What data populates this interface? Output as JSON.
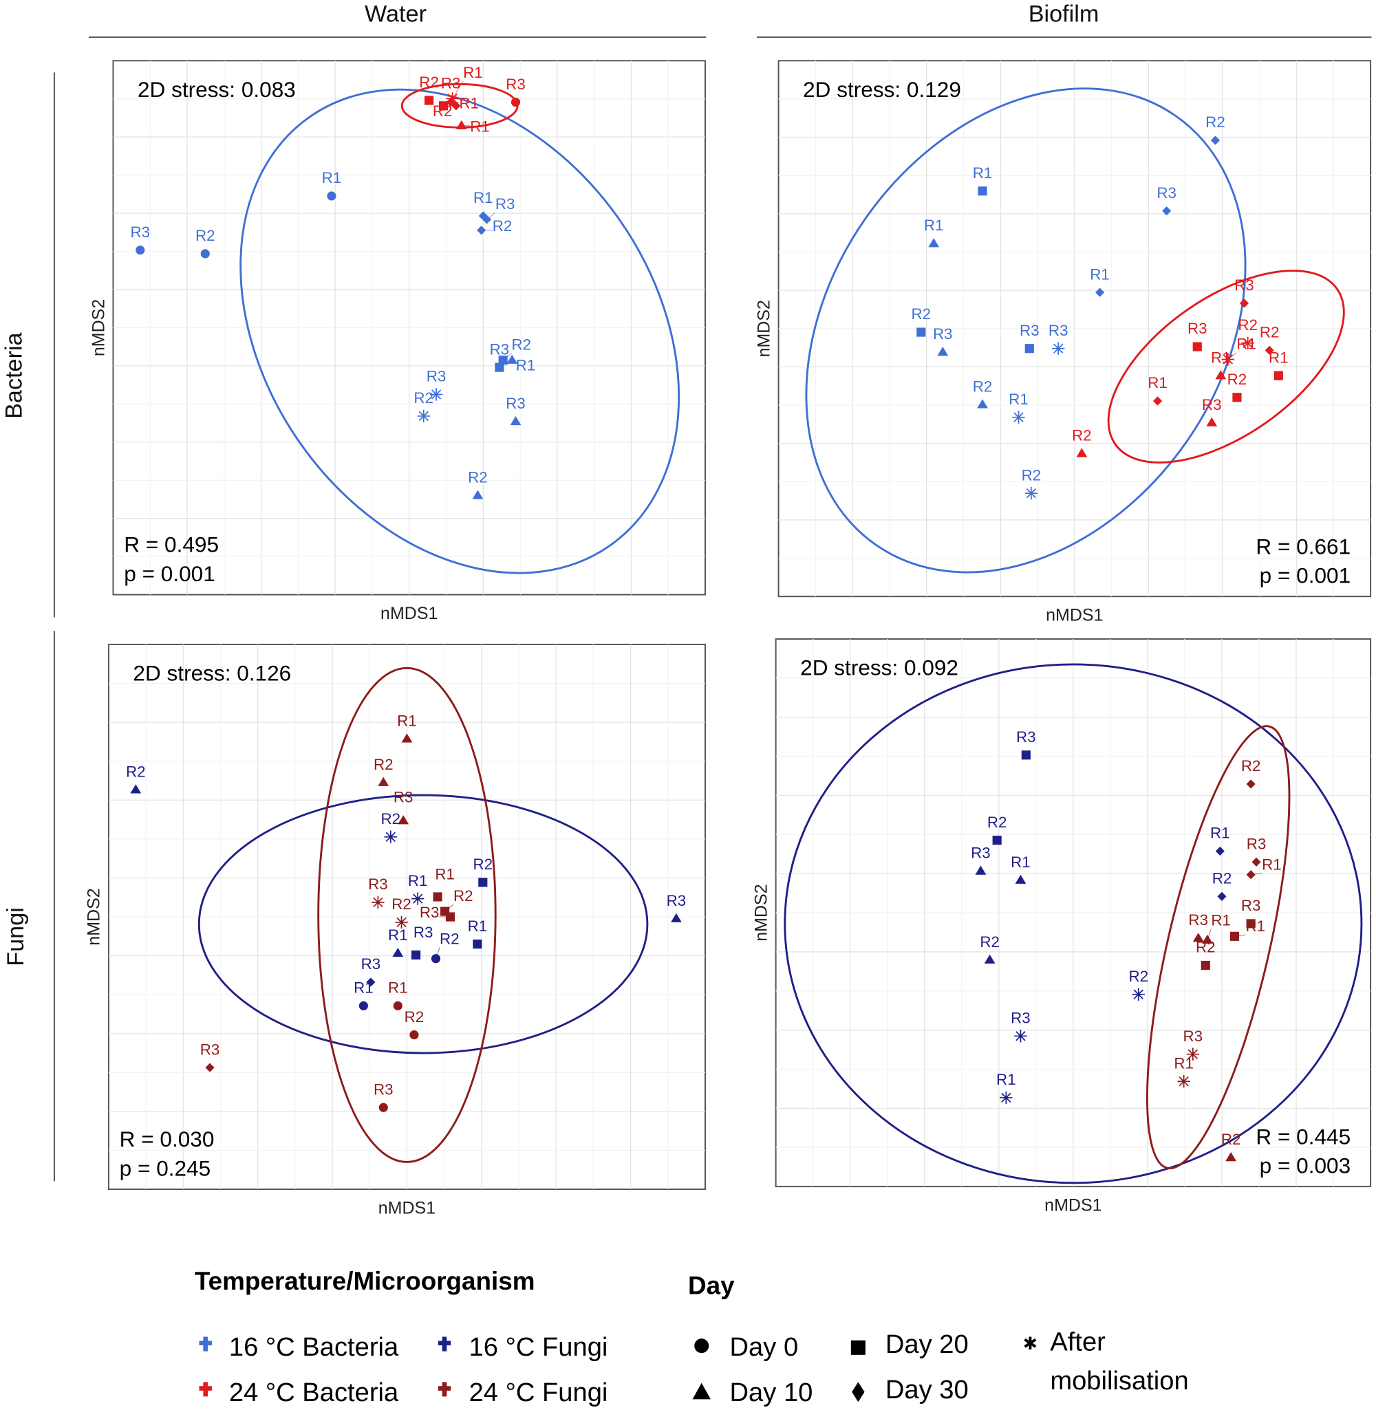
{
  "headers": {
    "columns": [
      "Water",
      "Biofilm"
    ],
    "rows": [
      "Bacteria",
      "Fungi"
    ]
  },
  "legend": {
    "group_title": "Temperature/Microorganism",
    "groups": [
      {
        "label": "16 °C Bacteria",
        "color": "#3f6fd6"
      },
      {
        "label": "16 °C Fungi",
        "color": "#1f1f8a"
      },
      {
        "label": "24 °C Bacteria",
        "color": "#e31a1c"
      },
      {
        "label": "24 °C Fungi",
        "color": "#8e1b1b"
      }
    ],
    "day_title": "Day",
    "days": [
      {
        "label": "Day 0",
        "shape": "circle"
      },
      {
        "label": "Day 10",
        "shape": "triangle"
      },
      {
        "label": "Day 20",
        "shape": "square"
      },
      {
        "label": "Day 30",
        "shape": "diamond"
      }
    ],
    "after": {
      "label_line1": "After",
      "label_line2": "mobilisation",
      "shape": "asterisk"
    }
  },
  "chart_data": [
    {
      "type": "scatter",
      "column": "Water",
      "row": "Bacteria",
      "xlabel": "nMDS1",
      "ylabel": "nMDS2",
      "stress": "2D stress: 0.083",
      "R": "R = 0.495",
      "p": "p = 0.001",
      "stats_placement": "bottom-left",
      "xlim": [
        -1.64,
        1.64
      ],
      "ylim": [
        -1.48,
        1.48
      ],
      "grid": true,
      "series": [
        {
          "name": "16 °C Bacteria",
          "color": "#3f6fd6",
          "points": [
            {
              "label": "R3",
              "shape": "circle",
              "x": -1.49,
              "y": 0.43
            },
            {
              "label": "R2",
              "shape": "circle",
              "x": -1.13,
              "y": 0.41
            },
            {
              "label": "R1",
              "shape": "circle",
              "x": -0.43,
              "y": 0.73
            },
            {
              "label": "R1",
              "shape": "diamond",
              "x": 0.41,
              "y": 0.62
            },
            {
              "label": "R3",
              "shape": "diamond",
              "x": 0.43,
              "y": 0.6
            },
            {
              "label": "R2",
              "shape": "diamond",
              "x": 0.4,
              "y": 0.54
            },
            {
              "label": "R3",
              "shape": "square",
              "x": 0.5,
              "y": -0.22
            },
            {
              "label": "R2",
              "shape": "square",
              "x": 0.52,
              "y": -0.18
            },
            {
              "label": "R1",
              "shape": "triangle",
              "x": 0.57,
              "y": -0.18
            },
            {
              "label": "R3",
              "shape": "triangle",
              "x": 0.59,
              "y": -0.52
            },
            {
              "label": "R2",
              "shape": "triangle",
              "x": 0.38,
              "y": -0.93
            },
            {
              "label": "R2",
              "shape": "asterisk",
              "x": 0.08,
              "y": -0.49
            },
            {
              "label": "R3",
              "shape": "asterisk",
              "x": 0.15,
              "y": -0.37
            }
          ]
        },
        {
          "name": "24 °C Bacteria",
          "color": "#e31a1c",
          "points": [
            {
              "label": "R2",
              "shape": "square",
              "x": 0.11,
              "y": 1.26
            },
            {
              "label": "R3",
              "shape": "square",
              "x": 0.19,
              "y": 1.23
            },
            {
              "label": "R1",
              "shape": "diamond",
              "x": 0.23,
              "y": 1.25
            },
            {
              "label": "R2",
              "shape": "diamond",
              "x": 0.26,
              "y": 1.23
            },
            {
              "label": "R1",
              "shape": "asterisk",
              "x": 0.24,
              "y": 1.27
            },
            {
              "label": "R3",
              "shape": "circle",
              "x": 0.59,
              "y": 1.25
            },
            {
              "label": "R1",
              "shape": "triangle",
              "x": 0.29,
              "y": 1.12
            }
          ]
        }
      ],
      "ellipses": [
        {
          "series": "16 °C Bacteria",
          "color": "#3f6fd6",
          "cx": 0.28,
          "cy": -0.02,
          "rx": 1.45,
          "ry": 1.08,
          "angle_deg": -55
        },
        {
          "series": "24 °C Bacteria",
          "color": "#e31a1c",
          "cx": 0.28,
          "cy": 1.23,
          "rx": 0.32,
          "ry": 0.12,
          "angle_deg": 0
        }
      ]
    },
    {
      "type": "scatter",
      "column": "Biofilm",
      "row": "Bacteria",
      "xlabel": "nMDS1",
      "ylabel": "nMDS2",
      "stress": "2D stress: 0.129",
      "R": "R = 0.661",
      "p": "p = 0.001",
      "stats_placement": "bottom-right",
      "xlim": [
        -1.64,
        1.64
      ],
      "ylim": [
        -1.48,
        1.48
      ],
      "grid": true,
      "series": [
        {
          "name": "16 °C Bacteria",
          "color": "#3f6fd6",
          "points": [
            {
              "label": "R2",
              "shape": "diamond",
              "x": 0.78,
              "y": 1.04
            },
            {
              "label": "R3",
              "shape": "diamond",
              "x": 0.51,
              "y": 0.65
            },
            {
              "label": "R1",
              "shape": "diamond",
              "x": 0.14,
              "y": 0.2
            },
            {
              "label": "R1",
              "shape": "square",
              "x": -0.51,
              "y": 0.76
            },
            {
              "label": "R1",
              "shape": "triangle",
              "x": -0.78,
              "y": 0.47
            },
            {
              "label": "R2",
              "shape": "square",
              "x": -0.85,
              "y": -0.02
            },
            {
              "label": "R3",
              "shape": "triangle",
              "x": -0.73,
              "y": -0.13
            },
            {
              "label": "R3",
              "shape": "square",
              "x": -0.25,
              "y": -0.11
            },
            {
              "label": "R3",
              "shape": "asterisk",
              "x": -0.09,
              "y": -0.11
            },
            {
              "label": "R2",
              "shape": "triangle",
              "x": -0.51,
              "y": -0.42
            },
            {
              "label": "R1",
              "shape": "asterisk",
              "x": -0.31,
              "y": -0.49
            },
            {
              "label": "R2",
              "shape": "asterisk",
              "x": -0.24,
              "y": -0.91
            }
          ]
        },
        {
          "name": "24 °C Bacteria",
          "color": "#e31a1c",
          "points": [
            {
              "label": "R2",
              "shape": "triangle",
              "x": 0.04,
              "y": -0.69
            },
            {
              "label": "R1",
              "shape": "diamond",
              "x": 0.46,
              "y": -0.4
            },
            {
              "label": "R3",
              "shape": "square",
              "x": 0.68,
              "y": -0.1
            },
            {
              "label": "R3",
              "shape": "diamond",
              "x": 0.94,
              "y": 0.14
            },
            {
              "label": "R2",
              "shape": "asterisk",
              "x": 0.96,
              "y": -0.08
            },
            {
              "label": "R1",
              "shape": "asterisk",
              "x": 0.85,
              "y": -0.17
            },
            {
              "label": "R1",
              "shape": "triangle",
              "x": 0.81,
              "y": -0.26
            },
            {
              "label": "R2",
              "shape": "square",
              "x": 0.9,
              "y": -0.38
            },
            {
              "label": "R1",
              "shape": "square",
              "x": 1.13,
              "y": -0.26
            },
            {
              "label": "R2",
              "shape": "diamond",
              "x": 1.08,
              "y": -0.12
            },
            {
              "label": "R3",
              "shape": "triangle",
              "x": 0.76,
              "y": -0.52
            }
          ]
        }
      ],
      "ellipses": [
        {
          "series": "16 °C Bacteria",
          "color": "#3f6fd6",
          "cx": -0.27,
          "cy": -0.01,
          "rx": 1.45,
          "ry": 1.08,
          "angle_deg": 55
        },
        {
          "series": "24 °C Bacteria",
          "color": "#e31a1c",
          "cx": 0.84,
          "cy": -0.21,
          "rx": 0.75,
          "ry": 0.38,
          "angle_deg": 35
        }
      ]
    },
    {
      "type": "scatter",
      "column": "Water",
      "row": "Fungi",
      "xlabel": "nMDS1",
      "ylabel": "nMDS2",
      "stress": "2D stress: 0.126",
      "R": "R = 0.030",
      "p": "p = 0.245",
      "stats_placement": "bottom-left",
      "xlim": [
        -1.65,
        1.65
      ],
      "ylim": [
        -1.5,
        1.5
      ],
      "grid": true,
      "series": [
        {
          "name": "16 °C Fungi",
          "color": "#1f1f8a",
          "points": [
            {
              "label": "R2",
              "shape": "triangle",
              "x": -1.5,
              "y": 0.7
            },
            {
              "label": "R3",
              "shape": "triangle",
              "x": 1.49,
              "y": -0.01
            },
            {
              "label": "R2",
              "shape": "asterisk",
              "x": -0.09,
              "y": 0.44
            },
            {
              "label": "R1",
              "shape": "asterisk",
              "x": 0.06,
              "y": 0.1
            },
            {
              "label": "R2",
              "shape": "square",
              "x": 0.42,
              "y": 0.19
            },
            {
              "label": "R1",
              "shape": "square",
              "x": 0.39,
              "y": -0.15
            },
            {
              "label": "R1",
              "shape": "triangle",
              "x": -0.05,
              "y": -0.2
            },
            {
              "label": "R3",
              "shape": "square",
              "x": 0.05,
              "y": -0.21
            },
            {
              "label": "R2",
              "shape": "circle",
              "x": 0.16,
              "y": -0.23
            },
            {
              "label": "R3",
              "shape": "diamond",
              "x": -0.2,
              "y": -0.36
            },
            {
              "label": "R1",
              "shape": "circle",
              "x": -0.24,
              "y": -0.49
            }
          ]
        },
        {
          "name": "24 °C Fungi",
          "color": "#8e1b1b",
          "points": [
            {
              "label": "R1",
              "shape": "triangle",
              "x": 0.0,
              "y": 0.98
            },
            {
              "label": "R2",
              "shape": "triangle",
              "x": -0.13,
              "y": 0.74
            },
            {
              "label": "R3",
              "shape": "triangle",
              "x": -0.02,
              "y": 0.53
            },
            {
              "label": "R3",
              "shape": "asterisk",
              "x": -0.16,
              "y": 0.08
            },
            {
              "label": "R2",
              "shape": "asterisk",
              "x": -0.03,
              "y": -0.03
            },
            {
              "label": "R1",
              "shape": "square",
              "x": 0.17,
              "y": 0.11
            },
            {
              "label": "R2",
              "shape": "square",
              "x": 0.21,
              "y": 0.03
            },
            {
              "label": "R3",
              "shape": "square",
              "x": 0.24,
              "y": 0.0
            },
            {
              "label": "R1",
              "shape": "circle",
              "x": -0.05,
              "y": -0.49
            },
            {
              "label": "R2",
              "shape": "circle",
              "x": 0.04,
              "y": -0.65
            },
            {
              "label": "R3",
              "shape": "diamond",
              "x": -1.09,
              "y": -0.83
            },
            {
              "label": "R3",
              "shape": "circle",
              "x": -0.13,
              "y": -1.05
            }
          ]
        }
      ],
      "ellipses": [
        {
          "series": "16 °C Fungi",
          "color": "#1f1f8a",
          "cx": 0.09,
          "cy": -0.04,
          "rx": 1.24,
          "ry": 0.71,
          "angle_deg": 0
        },
        {
          "series": "24 °C Fungi",
          "color": "#8e1b1b",
          "cx": 0.0,
          "cy": 0.01,
          "rx": 0.49,
          "ry": 1.36,
          "angle_deg": 0
        }
      ]
    },
    {
      "type": "scatter",
      "column": "Biofilm",
      "row": "Fungi",
      "xlabel": "nMDS1",
      "ylabel": "nMDS2",
      "stress": "2D stress: 0.092",
      "R": "R = 0.445",
      "p": "p = 0.003",
      "stats_placement": "bottom-right",
      "xlim": [
        -1.64,
        1.64
      ],
      "ylim": [
        -1.51,
        1.51
      ],
      "grid": true,
      "series": [
        {
          "name": "16 °C Fungi",
          "color": "#1f1f8a",
          "points": [
            {
              "label": "R3",
              "shape": "square",
              "x": -0.26,
              "y": 0.87
            },
            {
              "label": "R2",
              "shape": "square",
              "x": -0.42,
              "y": 0.4
            },
            {
              "label": "R3",
              "shape": "triangle",
              "x": -0.51,
              "y": 0.23
            },
            {
              "label": "R1",
              "shape": "triangle",
              "x": -0.29,
              "y": 0.18
            },
            {
              "label": "R2",
              "shape": "triangle",
              "x": -0.46,
              "y": -0.26
            },
            {
              "label": "R2",
              "shape": "asterisk",
              "x": 0.36,
              "y": -0.45
            },
            {
              "label": "R3",
              "shape": "asterisk",
              "x": -0.29,
              "y": -0.68
            },
            {
              "label": "R1",
              "shape": "asterisk",
              "x": -0.37,
              "y": -1.02
            },
            {
              "label": "R1",
              "shape": "diamond",
              "x": 0.81,
              "y": 0.34
            },
            {
              "label": "R2",
              "shape": "diamond",
              "x": 0.82,
              "y": 0.09
            }
          ]
        },
        {
          "name": "24 °C Fungi",
          "color": "#8e1b1b",
          "points": [
            {
              "label": "R2",
              "shape": "diamond",
              "x": 0.98,
              "y": 0.71
            },
            {
              "label": "R3",
              "shape": "diamond",
              "x": 1.01,
              "y": 0.28
            },
            {
              "label": "R1",
              "shape": "diamond",
              "x": 0.98,
              "y": 0.21
            },
            {
              "label": "R3",
              "shape": "square",
              "x": 0.98,
              "y": -0.06
            },
            {
              "label": "R1",
              "shape": "square",
              "x": 0.89,
              "y": -0.13
            },
            {
              "label": "R3",
              "shape": "triangle",
              "x": 0.69,
              "y": -0.14
            },
            {
              "label": "R1",
              "shape": "triangle",
              "x": 0.74,
              "y": -0.15
            },
            {
              "label": "R2",
              "shape": "square",
              "x": 0.73,
              "y": -0.29
            },
            {
              "label": "R3",
              "shape": "asterisk",
              "x": 0.66,
              "y": -0.78
            },
            {
              "label": "R1",
              "shape": "asterisk",
              "x": 0.61,
              "y": -0.93
            },
            {
              "label": "R2",
              "shape": "triangle",
              "x": 0.87,
              "y": -1.35
            }
          ]
        }
      ],
      "ellipses": [
        {
          "series": "16 °C Fungi",
          "color": "#1f1f8a",
          "cx": 0.0,
          "cy": -0.06,
          "rx": 1.59,
          "ry": 1.43,
          "angle_deg": 0
        },
        {
          "series": "24 °C Fungi",
          "color": "#8e1b1b",
          "cx": 0.8,
          "cy": -0.19,
          "rx": 1.25,
          "ry": 0.28,
          "angle_deg": 77
        }
      ]
    }
  ]
}
